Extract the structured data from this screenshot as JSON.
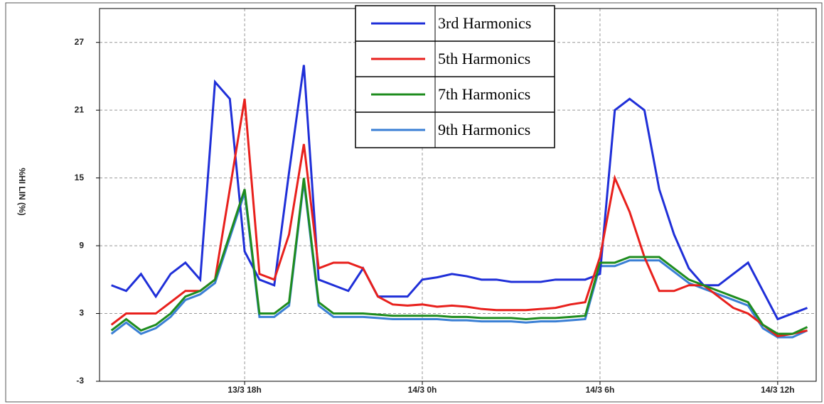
{
  "chart_data": {
    "type": "line",
    "y_label": "%HI LIN (%)",
    "x": [
      13.5,
      14,
      14.5,
      15,
      15.5,
      16,
      16.5,
      17,
      17.5,
      18,
      18.5,
      19,
      19.5,
      20,
      20.5,
      21,
      21.5,
      22,
      22.5,
      23,
      23.5,
      24,
      24.5,
      25,
      25.5,
      26,
      26.5,
      27,
      27.5,
      28,
      28.5,
      29,
      29.5,
      30,
      30.5,
      31,
      31.5,
      32,
      32.5,
      33,
      33.5,
      34,
      34.5,
      35,
      35.5,
      36,
      36.5,
      37
    ],
    "xlim": [
      13.1,
      37.3
    ],
    "xticks": [
      {
        "value": 18,
        "label": "13/3 18h"
      },
      {
        "value": 24,
        "label": "14/3 0h"
      },
      {
        "value": 30,
        "label": "14/3 6h"
      },
      {
        "value": 36,
        "label": "14/3 12h"
      }
    ],
    "ylim": [
      -3,
      30
    ],
    "yticks": [
      -3,
      3,
      9,
      15,
      21,
      27
    ],
    "grid": true,
    "legend": "top",
    "series": [
      {
        "name": "9th Harmonics",
        "color": "#3a7fd5",
        "values": [
          1.2,
          2.2,
          1.2,
          1.7,
          2.7,
          4.2,
          4.7,
          5.7,
          9.7,
          13.7,
          2.7,
          2.7,
          3.7,
          14.7,
          3.7,
          2.7,
          2.7,
          2.7,
          2.6,
          2.5,
          2.5,
          2.5,
          2.5,
          2.4,
          2.4,
          2.3,
          2.3,
          2.3,
          2.2,
          2.3,
          2.3,
          2.4,
          2.5,
          7.2,
          7.2,
          7.7,
          7.7,
          7.7,
          6.7,
          5.7,
          5.2,
          4.7,
          4.2,
          3.7,
          1.7,
          0.9,
          0.9,
          1.5
        ]
      },
      {
        "name": "3rd Harmonics",
        "color": "#1f2fd8",
        "values": [
          5.5,
          5,
          6.5,
          4.5,
          6.5,
          7.5,
          6,
          23.5,
          22,
          8.5,
          6,
          5.5,
          15.5,
          25,
          6,
          5.5,
          5,
          7,
          4.5,
          4.5,
          4.5,
          6,
          6.2,
          6.5,
          6.3,
          6,
          6,
          5.8,
          5.8,
          5.8,
          6,
          6,
          6,
          6.5,
          21,
          22,
          21,
          14,
          10,
          7,
          5.5,
          5.5,
          6.5,
          7.5,
          5,
          2.5,
          3,
          3.5
        ]
      },
      {
        "name": "5th Harmonics",
        "color": "#e8201c",
        "values": [
          2,
          3,
          3,
          3,
          4,
          5,
          5,
          6,
          14,
          22,
          6.5,
          6,
          10,
          18,
          7,
          7.5,
          7.5,
          7,
          4.5,
          3.8,
          3.7,
          3.8,
          3.6,
          3.7,
          3.6,
          3.4,
          3.3,
          3.3,
          3.3,
          3.4,
          3.5,
          3.8,
          4,
          8,
          15,
          12,
          8,
          5,
          5,
          5.5,
          5.5,
          4.5,
          3.5,
          3,
          2,
          1,
          1.2,
          1.5
        ]
      },
      {
        "name": "7th Harmonics",
        "color": "#1e8c1e",
        "values": [
          1.5,
          2.5,
          1.5,
          2,
          3,
          4.5,
          5,
          6,
          10,
          14,
          3,
          3,
          4,
          15,
          4,
          3,
          3,
          3,
          2.9,
          2.8,
          2.8,
          2.8,
          2.8,
          2.7,
          2.7,
          2.6,
          2.6,
          2.6,
          2.5,
          2.6,
          2.6,
          2.7,
          2.8,
          7.5,
          7.5,
          8,
          8,
          8,
          7,
          6,
          5.5,
          5,
          4.5,
          4,
          2,
          1.2,
          1.2,
          1.8
        ]
      }
    ]
  }
}
